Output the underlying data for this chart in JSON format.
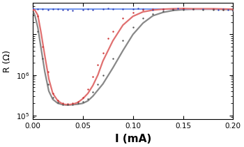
{
  "xlabel": "I (mA)",
  "ylabel": "R (Ω)",
  "xlim": [
    0.0,
    0.2
  ],
  "ylim_log": [
    80000.0,
    60000000.0
  ],
  "bg_color": "#ffffff",
  "blue_line": {
    "x": [
      0.0,
      0.2
    ],
    "y": [
      43000000.0,
      43000000.0
    ],
    "color": "#7799ee",
    "linewidth": 1.5
  },
  "blue_scatter": {
    "x": [
      0.0,
      0.005,
      0.01,
      0.015,
      0.02,
      0.025,
      0.03,
      0.035,
      0.04,
      0.05,
      0.055,
      0.06,
      0.07,
      0.075,
      0.08,
      0.09,
      0.1,
      0.105,
      0.11,
      0.12,
      0.13,
      0.14,
      0.145,
      0.15,
      0.16,
      0.17,
      0.18,
      0.185,
      0.19,
      0.195,
      0.2
    ],
    "y": [
      43500000.0,
      42500000.0,
      42000000.0,
      41000000.0,
      42000000.0,
      41500000.0,
      41000000.0,
      40000000.0,
      39500000.0,
      41000000.0,
      42000000.0,
      41000000.0,
      42500000.0,
      43500000.0,
      42000000.0,
      43000000.0,
      41500000.0,
      44000000.0,
      42000000.0,
      41000000.0,
      42000000.0,
      43000000.0,
      43500000.0,
      42000000.0,
      41500000.0,
      43000000.0,
      42500000.0,
      41000000.0,
      42000000.0,
      40000000.0,
      39000000.0
    ],
    "color": "#3344bb",
    "size": 3
  },
  "red_line": {
    "x": [
      0.0,
      0.002,
      0.005,
      0.008,
      0.012,
      0.016,
      0.02,
      0.025,
      0.03,
      0.035,
      0.04,
      0.045,
      0.05,
      0.055,
      0.06,
      0.065,
      0.07,
      0.08,
      0.09,
      0.1,
      0.11,
      0.12,
      0.13,
      0.14,
      0.15,
      0.16,
      0.17,
      0.18,
      0.19,
      0.2
    ],
    "y": [
      42000000.0,
      40000000.0,
      30000000.0,
      12000000.0,
      3000000.0,
      800000.0,
      350000.0,
      230000.0,
      190000.0,
      185000.0,
      190000.0,
      210000.0,
      260000.0,
      350000.0,
      550000.0,
      1000000.0,
      2200000.0,
      7000000.0,
      17000000.0,
      28000000.0,
      36000000.0,
      40000000.0,
      42000000.0,
      43000000.0,
      43500000.0,
      43000000.0,
      43000000.0,
      43000000.0,
      42500000.0,
      42000000.0
    ],
    "color": "#e07070",
    "linewidth": 1.6
  },
  "red_scatter": {
    "x": [
      0.0,
      0.005,
      0.01,
      0.015,
      0.02,
      0.025,
      0.03,
      0.035,
      0.04,
      0.045,
      0.05,
      0.055,
      0.06,
      0.065,
      0.07,
      0.075,
      0.08,
      0.09,
      0.1,
      0.11,
      0.12,
      0.13,
      0.14,
      0.15,
      0.16,
      0.18,
      0.19,
      0.2
    ],
    "y": [
      41000000.0,
      28000000.0,
      5000000.0,
      1200000.0,
      350000.0,
      240000.0,
      200000.0,
      195000.0,
      200000.0,
      220000.0,
      280000.0,
      450000.0,
      900000.0,
      1800000.0,
      3500000.0,
      8000000.0,
      12000000.0,
      25000000.0,
      35000000.0,
      40000000.0,
      41500000.0,
      42500000.0,
      43000000.0,
      43500000.0,
      42000000.0,
      42500000.0,
      41000000.0,
      40000000.0
    ],
    "color": "#cc3333",
    "size": 3
  },
  "gray_line": {
    "x": [
      0.0,
      0.002,
      0.005,
      0.008,
      0.012,
      0.016,
      0.02,
      0.025,
      0.03,
      0.035,
      0.04,
      0.045,
      0.05,
      0.055,
      0.06,
      0.07,
      0.08,
      0.09,
      0.1,
      0.11,
      0.12,
      0.13,
      0.14,
      0.15,
      0.16,
      0.17,
      0.18,
      0.19,
      0.2
    ],
    "y": [
      38000000.0,
      30000000.0,
      15000000.0,
      5000000.0,
      1200000.0,
      400000.0,
      250000.0,
      200000.0,
      185000.0,
      180000.0,
      185000.0,
      190000.0,
      200000.0,
      230000.0,
      300000.0,
      600000.0,
      1500000.0,
      4000000.0,
      10000000.0,
      19000000.0,
      29000000.0,
      35000000.0,
      39000000.0,
      41000000.0,
      42000000.0,
      42000000.0,
      42000000.0,
      41500000.0,
      41000000.0
    ],
    "color": "#888888",
    "linewidth": 1.6
  },
  "gray_scatter": {
    "x": [
      0.0,
      0.005,
      0.01,
      0.015,
      0.02,
      0.025,
      0.03,
      0.035,
      0.04,
      0.045,
      0.05,
      0.055,
      0.06,
      0.065,
      0.07,
      0.08,
      0.09,
      0.1,
      0.11,
      0.12,
      0.13,
      0.14,
      0.15,
      0.16,
      0.17,
      0.18,
      0.19,
      0.2
    ],
    "y": [
      35000000.0,
      12000000.0,
      2500000.0,
      600000.0,
      280000.0,
      210000.0,
      190000.0,
      185000.0,
      188000.0,
      200000.0,
      220000.0,
      260000.0,
      380000.0,
      600000.0,
      1000000.0,
      2500000.0,
      7000000.0,
      15000000.0,
      25000000.0,
      32000000.0,
      37000000.0,
      40000000.0,
      41000000.0,
      41500000.0,
      41000000.0,
      41000000.0,
      40000000.0,
      39000000.0
    ],
    "color": "#555555",
    "size": 3
  },
  "xlabel_fontsize": 11,
  "ylabel_fontsize": 9,
  "tick_fontsize": 7.5
}
